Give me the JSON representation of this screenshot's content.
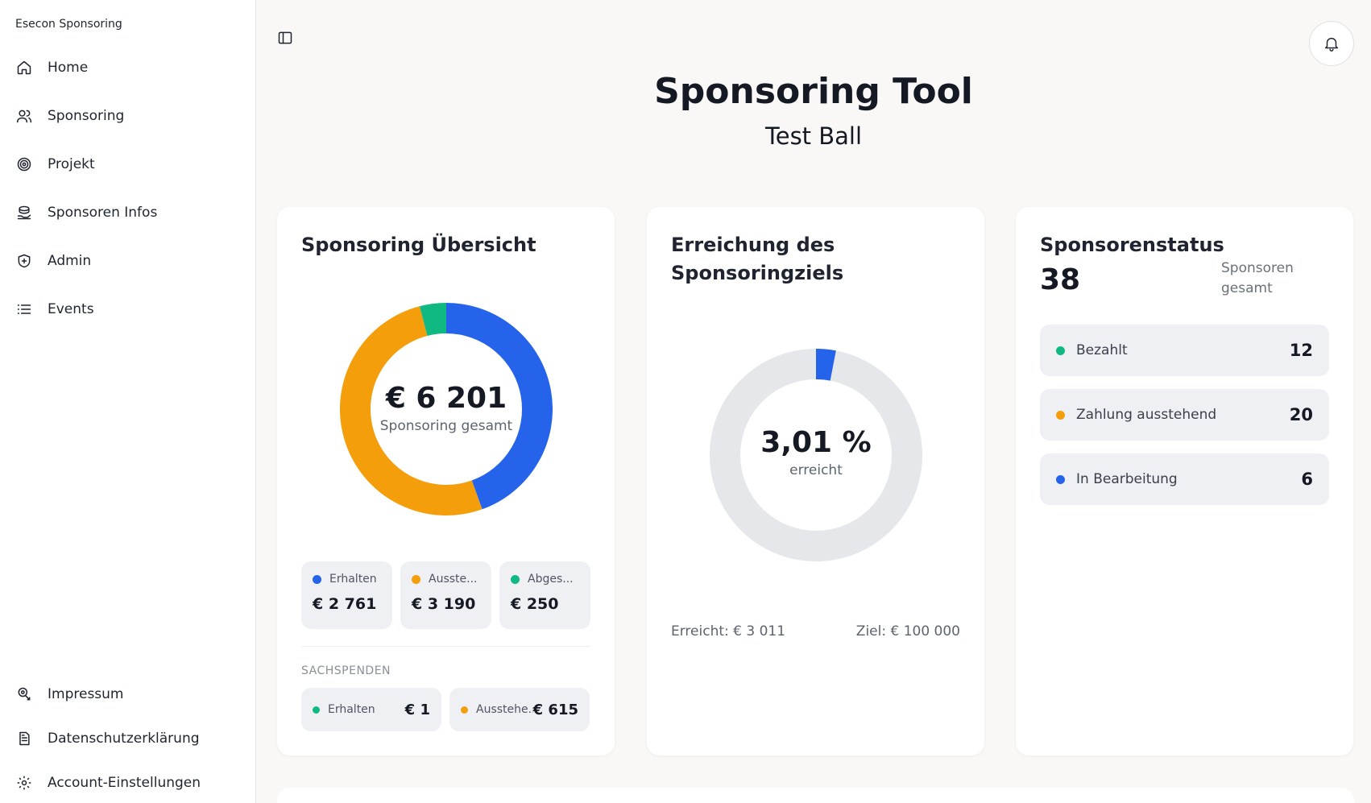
{
  "sidebar": {
    "brand": "Esecon Sponsoring",
    "items": [
      {
        "label": "Home",
        "icon": "home-icon"
      },
      {
        "label": "Sponsoring",
        "icon": "users-icon"
      },
      {
        "label": "Projekt",
        "icon": "target-icon"
      },
      {
        "label": "Sponsoren Infos",
        "icon": "hand-coins-icon"
      },
      {
        "label": "Admin",
        "icon": "shield-icon"
      },
      {
        "label": "Events",
        "icon": "list-icon"
      }
    ],
    "bottom_items": [
      {
        "label": "Impressum",
        "icon": "info-badge-icon"
      },
      {
        "label": "Datenschutzerklärung",
        "icon": "document-icon"
      },
      {
        "label": "Account-Einstellungen",
        "icon": "gear-icon"
      }
    ]
  },
  "header": {
    "title": "Sponsoring Tool",
    "subtitle": "Test Ball"
  },
  "overview": {
    "title": "Sponsoring Übersicht",
    "total": "€ 6 201",
    "total_label": "Sponsoring gesamt",
    "stats": [
      {
        "label": "Erhalten",
        "value": "€ 2 761",
        "color": "#2563eb",
        "amount": 2761
      },
      {
        "label": "Ausste...",
        "value": "€ 3 190",
        "color": "#f59e0b",
        "amount": 3190
      },
      {
        "label": "Abges...",
        "value": "€ 250",
        "color": "#10b981",
        "amount": 250
      }
    ],
    "sachspenden_heading": "SACHSPENDEN",
    "sachspenden": [
      {
        "label": "Erhalten",
        "value": "€ 1",
        "color": "#10b981"
      },
      {
        "label": "Ausstehe...",
        "value": "€ 615",
        "color": "#f59e0b"
      }
    ]
  },
  "goal": {
    "title_line1": "Erreichung des",
    "title_line2": "Sponsoringziels",
    "percent": "3,01 %",
    "percent_label": "erreicht",
    "progress": 0.0301,
    "reached": "Erreicht: € 3 011",
    "target": "Ziel: € 100 000",
    "color": "#2563eb",
    "track_color": "#e5e7eb"
  },
  "status": {
    "title": "Sponsorenstatus",
    "total": "38",
    "total_label": "Sponsoren gesamt",
    "rows": [
      {
        "label": "Bezahlt",
        "value": "12",
        "color": "#10b981"
      },
      {
        "label": "Zahlung ausstehend",
        "value": "20",
        "color": "#f59e0b"
      },
      {
        "label": "In Bearbeitung",
        "value": "6",
        "color": "#2563eb"
      }
    ]
  }
}
